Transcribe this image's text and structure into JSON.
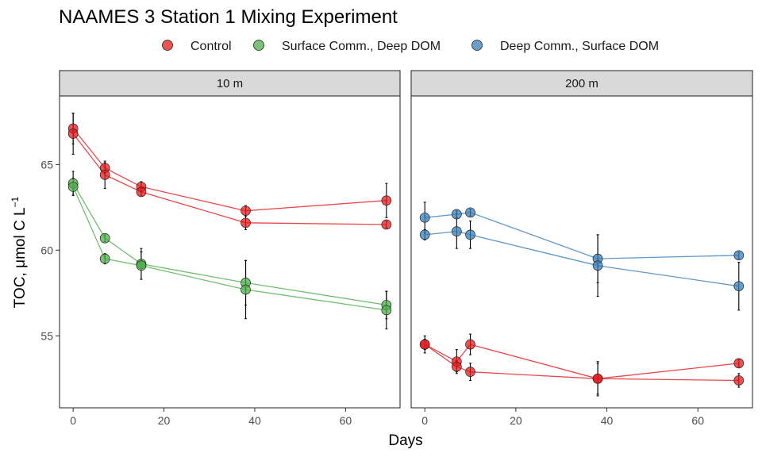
{
  "chart_data": {
    "type": "scatter",
    "title": "NAAMES 3 Station 1 Mixing Experiment",
    "xlabel": "Days",
    "ylabel": "TOC, μmol C L",
    "ylabel_exponent": "−1",
    "xlim": [
      -3,
      72
    ],
    "ylim": [
      50.8,
      69
    ],
    "x_ticks": [
      0,
      20,
      40,
      60
    ],
    "y_ticks": [
      55,
      60,
      65
    ],
    "grid": false,
    "legend_position": "top",
    "colors": {
      "Control": "#e41a1c",
      "Surface Comm., Deep DOM": "#4daf4a",
      "Deep Comm., Surface DOM": "#377eb8"
    },
    "legend": [
      {
        "name": "Control",
        "color": "#e41a1c"
      },
      {
        "name": "Surface Comm., Deep DOM",
        "color": "#4daf4a"
      },
      {
        "name": "Deep Comm., Surface DOM",
        "color": "#377eb8"
      }
    ],
    "panels": [
      {
        "strip_label": "10 m",
        "series": [
          {
            "name": "Control",
            "color": "#e41a1c",
            "x": [
              0,
              7,
              15,
              38,
              69
            ],
            "y": [
              67.1,
              64.8,
              63.7,
              62.3,
              62.9
            ],
            "err": [
              0.9,
              0.3,
              0.3,
              0.3,
              1.0
            ]
          },
          {
            "name": "Control",
            "color": "#e41a1c",
            "x": [
              0,
              7,
              15,
              38,
              69
            ],
            "y": [
              66.8,
              64.4,
              63.4,
              61.6,
              61.5
            ],
            "err": [
              1.2,
              0.8,
              0.2,
              0.4,
              0.2
            ]
          },
          {
            "name": "Surface Comm., Deep DOM",
            "color": "#4daf4a",
            "x": [
              0,
              7,
              15,
              38,
              69
            ],
            "y": [
              63.9,
              60.7,
              59.2,
              58.1,
              56.8
            ],
            "err": [
              0.7,
              0.2,
              0.9,
              1.3,
              0.8
            ]
          },
          {
            "name": "Surface Comm., Deep DOM",
            "color": "#4daf4a",
            "x": [
              0,
              7,
              15,
              38,
              69
            ],
            "y": [
              63.7,
              59.5,
              59.1,
              57.7,
              56.5
            ],
            "err": [
              0.5,
              0.3,
              0.8,
              1.7,
              1.1
            ]
          }
        ]
      },
      {
        "strip_label": "200 m",
        "series": [
          {
            "name": "Deep Comm., Surface DOM",
            "color": "#377eb8",
            "x": [
              0,
              7,
              10,
              38,
              69
            ],
            "y": [
              61.9,
              62.1,
              62.2,
              59.5,
              59.7
            ],
            "err": [
              0.9,
              0.2,
              0.2,
              1.4,
              0.2
            ]
          },
          {
            "name": "Deep Comm., Surface DOM",
            "color": "#377eb8",
            "x": [
              0,
              7,
              10,
              38,
              69
            ],
            "y": [
              60.9,
              61.1,
              60.9,
              59.1,
              57.9
            ],
            "err": [
              0.3,
              1.0,
              0.8,
              1.8,
              1.4
            ]
          },
          {
            "name": "Control",
            "color": "#e41a1c",
            "x": [
              0,
              7,
              10,
              38,
              69
            ],
            "y": [
              54.5,
              53.5,
              54.5,
              52.5,
              53.4
            ],
            "err": [
              0.5,
              0.7,
              0.6,
              1.0,
              0.2
            ]
          },
          {
            "name": "Control",
            "color": "#e41a1c",
            "x": [
              0,
              7,
              10,
              38,
              69
            ],
            "y": [
              54.5,
              53.2,
              52.9,
              52.5,
              52.4
            ],
            "err": [
              0.3,
              0.3,
              0.5,
              0.9,
              0.4
            ]
          }
        ]
      }
    ]
  }
}
